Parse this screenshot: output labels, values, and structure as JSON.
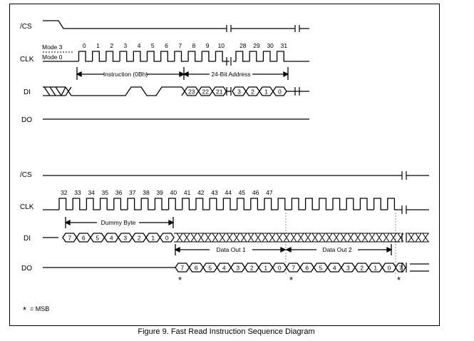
{
  "top": {
    "labels": {
      "cs": "/CS",
      "clk": "CLK",
      "di": "DI",
      "do": "DO"
    },
    "mode3": "Mode 3",
    "mode0": "Mode 0",
    "clock_numbers_a": [
      "0",
      "1",
      "2",
      "3",
      "4",
      "5",
      "6",
      "7",
      "8",
      "9",
      "10"
    ],
    "clock_numbers_b": [
      "28",
      "29",
      "30",
      "31"
    ],
    "instruction_label": "Instruction (0Bh)",
    "address_label": "24-Bit Address",
    "address_bits_a": [
      "23",
      "22",
      "21"
    ],
    "address_bits_b": [
      "3",
      "2",
      "1",
      "0"
    ]
  },
  "bottom": {
    "labels": {
      "cs": "/CS",
      "clk": "CLK",
      "di": "DI",
      "do": "DO"
    },
    "clock_numbers": [
      "32",
      "33",
      "34",
      "35",
      "36",
      "37",
      "38",
      "39",
      "40",
      "41",
      "42",
      "43",
      "44",
      "45",
      "46",
      "47"
    ],
    "dummy_label": "Dummy Byte",
    "dummy_bits": [
      "7",
      "6",
      "5",
      "4",
      "3",
      "2",
      "1",
      "0"
    ],
    "data_out_1_label": "Data Out 1",
    "data_out_2_label": "Data Out 2",
    "data_bits_1": [
      "7",
      "6",
      "5",
      "4",
      "3",
      "2",
      "1",
      "0"
    ],
    "data_bits_2": [
      "7",
      "6",
      "5",
      "4",
      "3",
      "2",
      "1",
      "0"
    ],
    "data_bit_3": "7",
    "msb_marker": "*"
  },
  "legend": "= MSB",
  "caption": "Figure 9. Fast Read Instruction Sequence Diagram"
}
